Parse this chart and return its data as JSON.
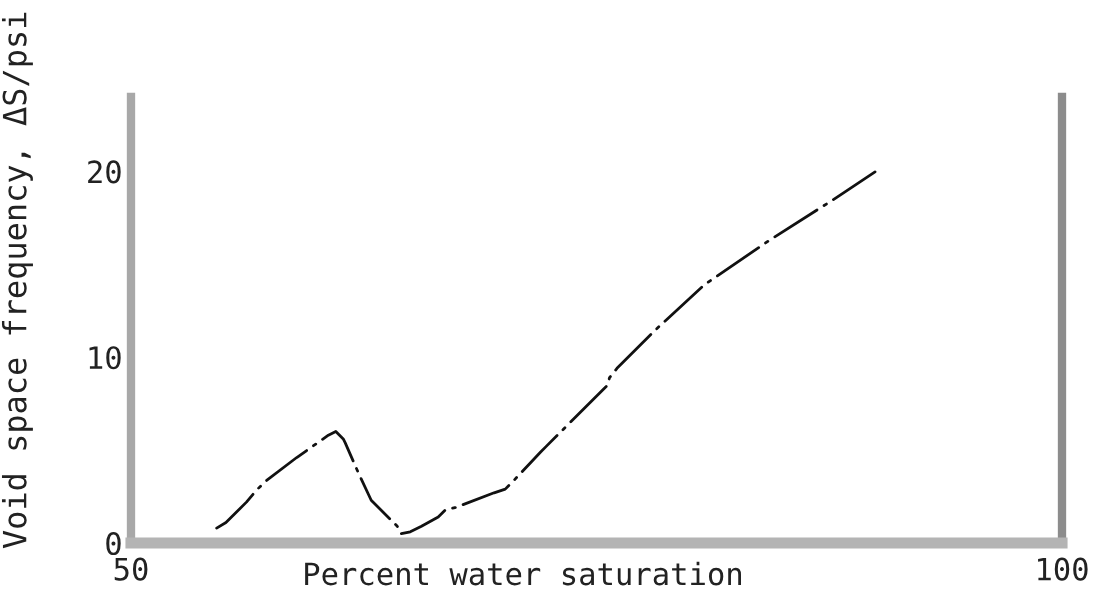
{
  "chart_data": {
    "type": "line",
    "xlabel": "Percent water saturation",
    "ylabel": "Void space frequency, ΔS/psi",
    "x": [
      54.6,
      55.1,
      56.2,
      56.7,
      57.2,
      58.9,
      60.6,
      61.0,
      61.4,
      61.5,
      62.2,
      62.9,
      64.3,
      64.5,
      65.0,
      65.6,
      66.5,
      66.9,
      67.4,
      69.5,
      70.1,
      70.5,
      72.0,
      72.3,
      75.6,
      75.7,
      76.1,
      78.2,
      80.8,
      84.3,
      87.6,
      90.0
    ],
    "series": [
      {
        "color": "#111111",
        "values": [
          0.8,
          1.1,
          2.2,
          2.8,
          3.3,
          4.6,
          5.8,
          6.0,
          5.6,
          5.4,
          3.8,
          2.3,
          0.9,
          0.5,
          0.6,
          0.9,
          1.4,
          1.8,
          1.9,
          2.7,
          2.9,
          3.3,
          4.9,
          5.2,
          8.5,
          8.9,
          9.4,
          11.5,
          13.9,
          16.3,
          18.4,
          20.0
        ]
      }
    ],
    "xlim": [
      50,
      100
    ],
    "ylim": [
      0,
      24
    ],
    "xticks": [
      50,
      100
    ],
    "yticks": [
      0,
      10,
      20
    ],
    "line_style": "dashdot",
    "marker": "none",
    "grid": false
  }
}
